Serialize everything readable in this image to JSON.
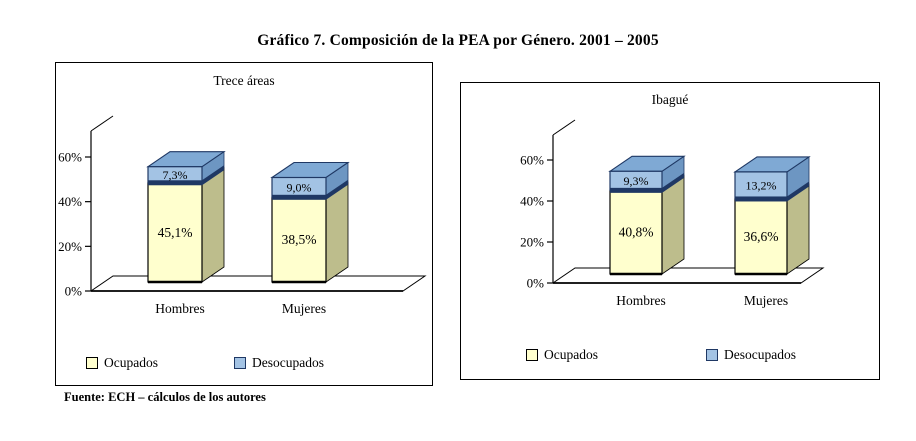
{
  "page": {
    "title": "Gráfico 7. Composición de la PEA por Género. 2001 – 2005",
    "source_note": "Fuente: ECH – cálculos de los autores"
  },
  "legend": {
    "ocupados": "Ocupados",
    "desocupados": "Desocupados"
  },
  "colors": {
    "ocupados_front": "#FFFFCE",
    "ocupados_side": "#BDBD8C",
    "desocupados_front": "#A3C3E4",
    "desocupados_side": "#6D96C2",
    "desocupados_top": "#7FA9D4",
    "divider_band": "#1F3864",
    "outline": "#000000"
  },
  "chart_data": [
    {
      "type": "bar",
      "variant": "3d-stacked-column",
      "title": "Trece áreas",
      "categories": [
        "Hombres",
        "Mujeres"
      ],
      "series": [
        {
          "name": "Ocupados",
          "values": [
            45.1,
            38.5
          ]
        },
        {
          "name": "Desocupados",
          "values": [
            7.3,
            9.0
          ]
        }
      ],
      "value_labels": [
        [
          "45,1%",
          "38,5%"
        ],
        [
          "7,3%",
          "9,0%"
        ]
      ],
      "yticks": [
        0,
        20,
        40,
        60
      ],
      "ytick_labels": [
        "0%",
        "20%",
        "40%",
        "60%"
      ],
      "ylim": [
        0,
        60
      ],
      "grid": false,
      "legend_position": "bottom"
    },
    {
      "type": "bar",
      "variant": "3d-stacked-column",
      "title": "Ibagué",
      "categories": [
        "Hombres",
        "Mujeres"
      ],
      "series": [
        {
          "name": "Ocupados",
          "values": [
            40.8,
            36.6
          ]
        },
        {
          "name": "Desocupados",
          "values": [
            9.3,
            13.2
          ]
        }
      ],
      "value_labels": [
        [
          "40,8%",
          "36,6%"
        ],
        [
          "9,3%",
          "13,2%"
        ]
      ],
      "yticks": [
        0,
        20,
        40,
        60
      ],
      "ytick_labels": [
        "0%",
        "20%",
        "40%",
        "60%"
      ],
      "ylim": [
        0,
        60
      ],
      "grid": false,
      "legend_position": "bottom"
    }
  ]
}
